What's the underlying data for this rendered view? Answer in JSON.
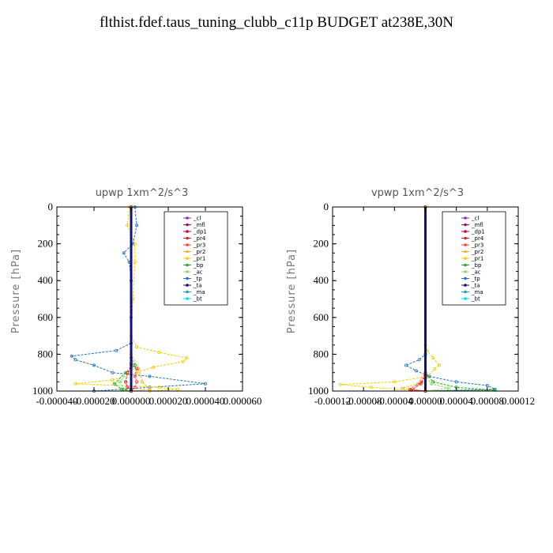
{
  "page": {
    "title": "flthist.fdef.taus_tuning_clubb_c11p  BUDGET at238E,30N"
  },
  "legend": [
    {
      "name": "_cl",
      "color": "#8a2be2"
    },
    {
      "name": "_mfl",
      "color": "#b0006b"
    },
    {
      "name": "_dp1",
      "color": "#c0003a"
    },
    {
      "name": "_pr4",
      "color": "#e0202a"
    },
    {
      "name": "_pr3",
      "color": "#ff4040"
    },
    {
      "name": "_pr2",
      "color": "#ffb020"
    },
    {
      "name": "_pr1",
      "color": "#f2d000"
    },
    {
      "name": "_bp",
      "color": "#22aa22"
    },
    {
      "name": "_ac",
      "color": "#88dd55"
    },
    {
      "name": "_tp",
      "color": "#2277bb"
    },
    {
      "name": "_ta",
      "color": "#101080"
    },
    {
      "name": "_ma",
      "color": "#1aa0c0"
    },
    {
      "name": "_bt",
      "color": "#00e0f0"
    }
  ],
  "chart_data": [
    {
      "type": "line",
      "title": "upwp   1xm^2/s^3",
      "ylabel": "Pressure [hPa]",
      "xlabel": "",
      "xlim": [
        -4e-05,
        6e-05
      ],
      "ylim": [
        0,
        1000
      ],
      "y_inverted": true,
      "x_ticks": [
        "-0.000040",
        "-0.000020",
        "0.000000",
        "0.000020",
        "0.000040",
        "0.000060"
      ],
      "x_tick_values": [
        -4e-05,
        -2e-05,
        0,
        2e-05,
        4e-05,
        6e-05
      ],
      "y_ticks": [
        0,
        200,
        400,
        600,
        800,
        1000
      ],
      "series": [
        {
          "name": "_tp",
          "color": "#2277bb",
          "points": [
            [
              2e-06,
              0
            ],
            [
              3e-06,
              100
            ],
            [
              1e-06,
              200
            ],
            [
              -4e-06,
              250
            ],
            [
              -1e-06,
              300
            ],
            [
              0,
              400
            ],
            [
              0,
              600
            ],
            [
              0,
              740
            ],
            [
              -8e-06,
              780
            ],
            [
              -3.2e-05,
              810
            ],
            [
              -3e-05,
              830
            ],
            [
              -2e-05,
              860
            ],
            [
              -1e-05,
              900
            ],
            [
              1e-05,
              920
            ],
            [
              4e-05,
              960
            ],
            [
              1e-05,
              980
            ],
            [
              -2e-05,
              1000
            ]
          ]
        },
        {
          "name": "_pr1",
          "color": "#f2d000",
          "points": [
            [
              -1e-06,
              0
            ],
            [
              -2e-06,
              100
            ],
            [
              2e-06,
              200
            ],
            [
              2e-06,
              300
            ],
            [
              1e-06,
              500
            ],
            [
              0,
              700
            ],
            [
              3e-06,
              760
            ],
            [
              1.5e-05,
              790
            ],
            [
              3e-05,
              820
            ],
            [
              2.8e-05,
              840
            ],
            [
              1.2e-05,
              870
            ],
            [
              3e-06,
              900
            ],
            [
              -1e-05,
              940
            ],
            [
              -3e-05,
              960
            ],
            [
              1.5e-05,
              980
            ],
            [
              2.5e-05,
              990
            ],
            [
              1e-05,
              1000
            ]
          ]
        },
        {
          "name": "_pr2",
          "color": "#ffb020",
          "points": [
            [
              0,
              0
            ],
            [
              0,
              800
            ],
            [
              4e-06,
              880
            ],
            [
              6e-06,
              950
            ],
            [
              1e-05,
              990
            ],
            [
              0,
              1000
            ]
          ]
        },
        {
          "name": "_ac",
          "color": "#88dd55",
          "points": [
            [
              0,
              0
            ],
            [
              0,
              850
            ],
            [
              3e-06,
              870
            ],
            [
              -2e-06,
              900
            ],
            [
              -6e-06,
              950
            ],
            [
              -4e-06,
              990
            ],
            [
              0,
              1000
            ]
          ]
        },
        {
          "name": "_bp",
          "color": "#22aa22",
          "points": [
            [
              0,
              0
            ],
            [
              0,
              820
            ],
            [
              2e-06,
              860
            ],
            [
              -3e-06,
              900
            ],
            [
              -9e-06,
              960
            ],
            [
              -5e-06,
              990
            ],
            [
              0,
              1000
            ]
          ]
        },
        {
          "name": "_pr3",
          "color": "#ff4040",
          "points": [
            [
              0,
              0
            ],
            [
              0,
              850
            ],
            [
              3e-06,
              880
            ],
            [
              2e-06,
              920
            ],
            [
              3e-06,
              950
            ],
            [
              2e-06,
              980
            ],
            [
              0,
              1000
            ]
          ]
        },
        {
          "name": "_pr4",
          "color": "#e0202a",
          "points": [
            [
              0,
              0
            ],
            [
              0,
              860
            ],
            [
              -2e-06,
              900
            ],
            [
              -3e-06,
              950
            ],
            [
              -2e-06,
              980
            ],
            [
              0,
              1000
            ]
          ]
        },
        {
          "name": "_dp1",
          "color": "#c0003a",
          "points": [
            [
              0,
              0
            ],
            [
              0,
              1000
            ]
          ]
        },
        {
          "name": "_mfl",
          "color": "#b0006b",
          "points": [
            [
              0,
              0
            ],
            [
              0,
              1000
            ]
          ]
        },
        {
          "name": "_cl",
          "color": "#8a2be2",
          "points": [
            [
              0,
              0
            ],
            [
              0,
              1000
            ]
          ]
        },
        {
          "name": "_ta",
          "color": "#101080",
          "points": [
            [
              0,
              0
            ],
            [
              0,
              1000
            ]
          ]
        }
      ]
    },
    {
      "type": "line",
      "title": "vpwp   1xm^2/s^3",
      "ylabel": "Pressure [hPa]",
      "xlabel": "",
      "xlim": [
        -0.00012,
        0.00012
      ],
      "ylim": [
        0,
        1000
      ],
      "y_inverted": true,
      "x_ticks": [
        "-0.00012",
        "-0.00008",
        "-0.00004",
        "0.00000",
        "0.00004",
        "0.00008",
        "0.00012"
      ],
      "x_tick_values": [
        -0.00012,
        -8e-05,
        -4e-05,
        0,
        4e-05,
        8e-05,
        0.00012
      ],
      "y_ticks": [
        0,
        200,
        400,
        600,
        800,
        1000
      ],
      "series": [
        {
          "name": "_pr1",
          "color": "#f2d000",
          "points": [
            [
              0,
              0
            ],
            [
              0,
              750
            ],
            [
              2e-06,
              780
            ],
            [
              1e-05,
              820
            ],
            [
              1.8e-05,
              860
            ],
            [
              1.2e-05,
              880
            ],
            [
              3e-06,
              920
            ],
            [
              -4e-05,
              950
            ],
            [
              -0.00011,
              965
            ],
            [
              -7e-05,
              980
            ],
            [
              -2e-05,
              995
            ],
            [
              0,
              1000
            ]
          ]
        },
        {
          "name": "_tp",
          "color": "#2277bb",
          "points": [
            [
              0,
              0
            ],
            [
              0,
              800
            ],
            [
              -8e-06,
              830
            ],
            [
              -2.5e-05,
              860
            ],
            [
              -1.2e-05,
              890
            ],
            [
              5e-06,
              920
            ],
            [
              4e-05,
              950
            ],
            [
              8e-05,
              970
            ],
            [
              9e-05,
              990
            ],
            [
              0,
              1000
            ]
          ]
        },
        {
          "name": "_bp",
          "color": "#22aa22",
          "points": [
            [
              0,
              0
            ],
            [
              0,
              900
            ],
            [
              1e-05,
              950
            ],
            [
              4e-05,
              980
            ],
            [
              9e-05,
              995
            ],
            [
              0,
              1000
            ]
          ]
        },
        {
          "name": "_ac",
          "color": "#88dd55",
          "points": [
            [
              0,
              0
            ],
            [
              0,
              920
            ],
            [
              8e-06,
              960
            ],
            [
              3e-05,
              985
            ],
            [
              0,
              1000
            ]
          ]
        },
        {
          "name": "_pr2",
          "color": "#ffb020",
          "points": [
            [
              0,
              0
            ],
            [
              0,
              900
            ],
            [
              -1e-05,
              960
            ],
            [
              -3e-05,
              985
            ],
            [
              0,
              1000
            ]
          ]
        },
        {
          "name": "_pr3",
          "color": "#ff4040",
          "points": [
            [
              0,
              0
            ],
            [
              0,
              900
            ],
            [
              -5e-06,
              950
            ],
            [
              -2e-05,
              990
            ],
            [
              0,
              1000
            ]
          ]
        },
        {
          "name": "_pr4",
          "color": "#e0202a",
          "points": [
            [
              0,
              0
            ],
            [
              0,
              920
            ],
            [
              -6e-06,
              960
            ],
            [
              -1.8e-05,
              995
            ],
            [
              0,
              1000
            ]
          ]
        },
        {
          "name": "_dp1",
          "color": "#c0003a",
          "points": [
            [
              0,
              0
            ],
            [
              0,
              1000
            ]
          ]
        },
        {
          "name": "_mfl",
          "color": "#b0006b",
          "points": [
            [
              0,
              0
            ],
            [
              0,
              1000
            ]
          ]
        },
        {
          "name": "_cl",
          "color": "#8a2be2",
          "points": [
            [
              0,
              0
            ],
            [
              0,
              1000
            ]
          ]
        },
        {
          "name": "_ta",
          "color": "#101080",
          "points": [
            [
              0,
              0
            ],
            [
              0,
              1000
            ]
          ]
        }
      ]
    }
  ]
}
